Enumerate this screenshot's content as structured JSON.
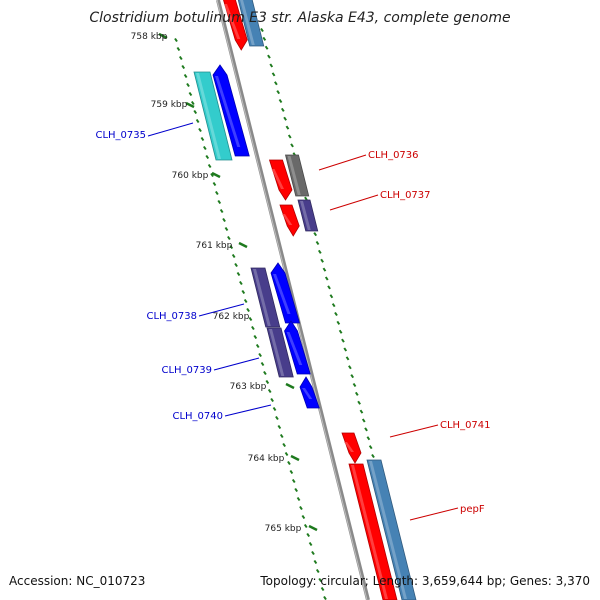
{
  "title": "Clostridium botulinum E3 str. Alaska E43, complete genome",
  "footer": {
    "accession": "Accession: NC_010723",
    "stats": "Topology: circular; Length: 3,659,644 bp; Genes: 3,370"
  },
  "colors": {
    "backbone": "#8a8a8a",
    "tick": "#1e7a1e",
    "label_blue": "#0000cc",
    "label_red": "#cc0000",
    "gene_red": "#ff0000",
    "gene_blue": "#0000ff",
    "gene_cyan": "#33cccc",
    "gene_indigo": "#483d8b",
    "gene_steel": "#4682b4",
    "gene_gray": "#696969"
  },
  "axis_labels": [
    {
      "text": "758 kbp"
    },
    {
      "text": "759 kbp"
    },
    {
      "text": "760 kbp"
    },
    {
      "text": "761 kbp"
    },
    {
      "text": "762 kbp"
    },
    {
      "text": "763 kbp"
    },
    {
      "text": "764 kbp"
    },
    {
      "text": "765 kbp"
    }
  ],
  "gene_labels": [
    {
      "text": "CLH_0735",
      "color": "label_blue"
    },
    {
      "text": "CLH_0736",
      "color": "label_red"
    },
    {
      "text": "CLH_0737",
      "color": "label_red"
    },
    {
      "text": "CLH_0738",
      "color": "label_blue"
    },
    {
      "text": "CLH_0739",
      "color": "label_blue"
    },
    {
      "text": "CLH_0740",
      "color": "label_blue"
    },
    {
      "text": "CLH_0741",
      "color": "label_red"
    },
    {
      "text": "pepF",
      "color": "label_red"
    }
  ]
}
